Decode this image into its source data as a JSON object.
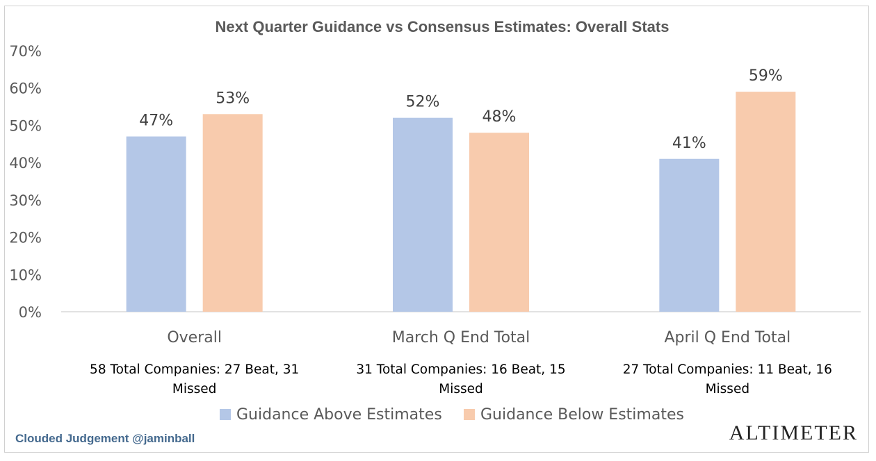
{
  "chart_data": {
    "type": "bar",
    "title": "Next Quarter Guidance vs Consensus Estimates: Overall Stats",
    "categories": [
      "Overall",
      "March Q End Total",
      "April Q End Total"
    ],
    "category_notes": [
      [
        "58 Total Companies: 27 Beat, 31",
        "Missed"
      ],
      [
        "31 Total Companies: 16 Beat, 15",
        "Missed"
      ],
      [
        "27 Total Companies: 11 Beat, 16",
        "Missed"
      ]
    ],
    "series": [
      {
        "name": "Guidance Above Estimates",
        "color": "#b4c7e7",
        "values": [
          47,
          52,
          41
        ],
        "labels": [
          "47%",
          "52%",
          "41%"
        ]
      },
      {
        "name": "Guidance Below Estimates",
        "color": "#f8cbad",
        "values": [
          53,
          48,
          59
        ],
        "labels": [
          "53%",
          "48%",
          "59%"
        ]
      }
    ],
    "ylim": [
      0,
      70
    ],
    "yticks": [
      "0%",
      "10%",
      "20%",
      "30%",
      "40%",
      "50%",
      "60%",
      "70%"
    ],
    "ytick_values": [
      0,
      10,
      20,
      30,
      40,
      50,
      60,
      70
    ],
    "grid": false,
    "legend": "bottom",
    "xlabel": "",
    "ylabel": ""
  },
  "footer": {
    "credit": "Clouded Judgement @jaminball",
    "logo": "ALTIMETER"
  }
}
